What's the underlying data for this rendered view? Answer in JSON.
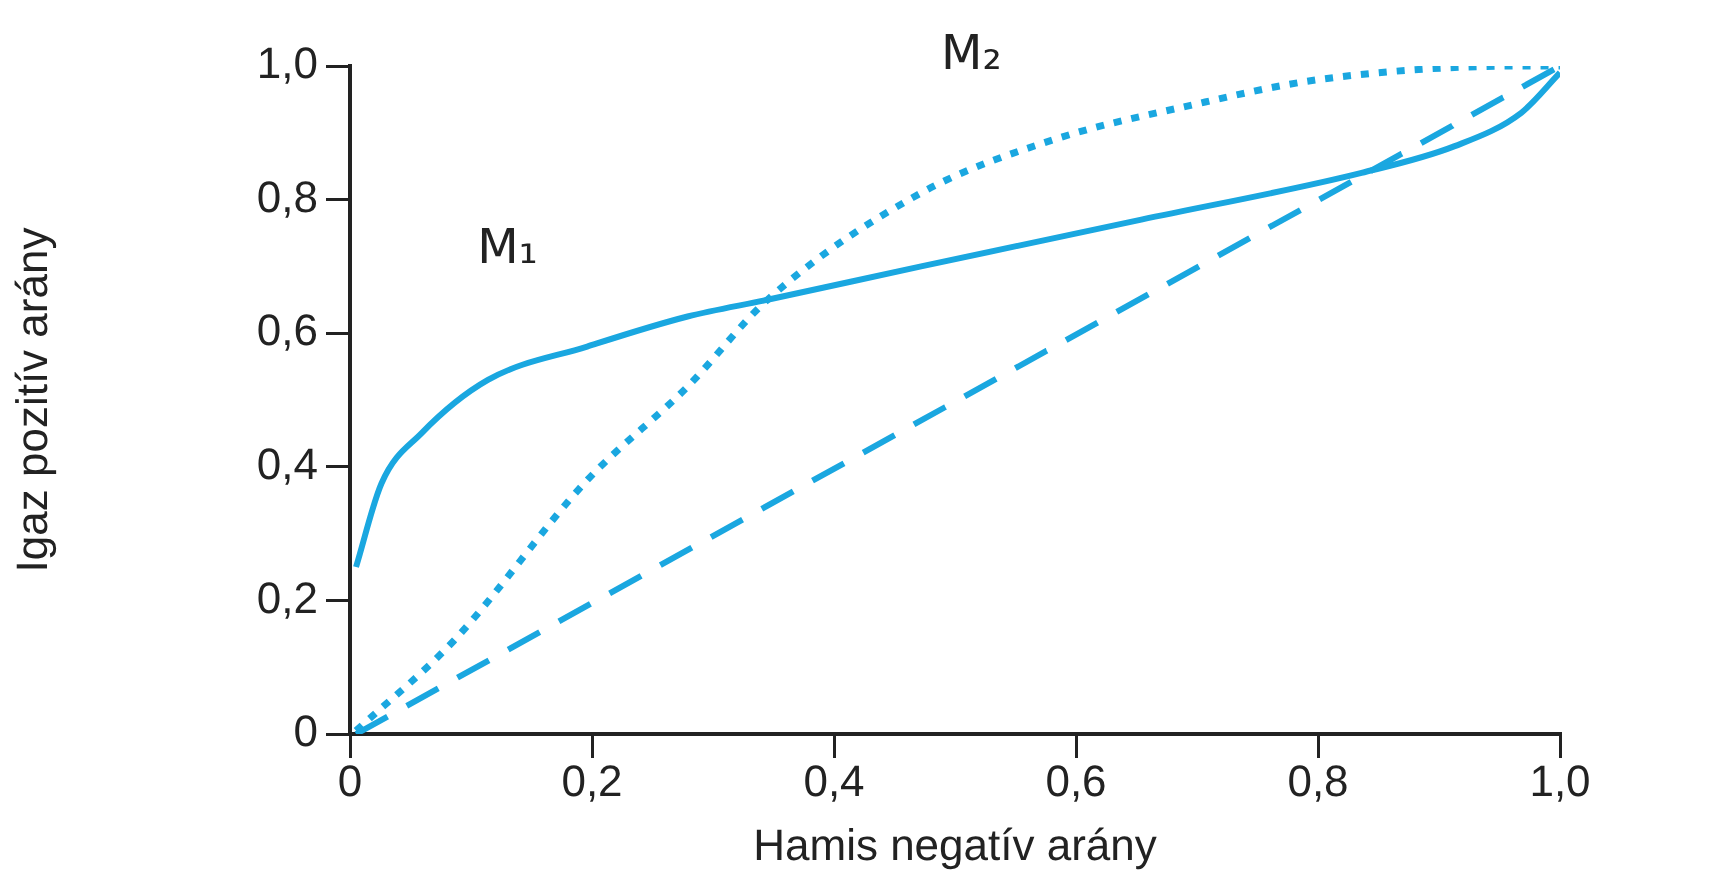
{
  "chart_data": {
    "type": "line",
    "xlabel": "Hamis negatív arány",
    "ylabel": "Igaz pozitív arány",
    "xlim": [
      0,
      1
    ],
    "ylim": [
      0,
      1
    ],
    "xticks": [
      0,
      {
        "value": 0.2,
        "label": "0,2"
      },
      {
        "value": 0.4,
        "label": "0,4"
      },
      {
        "value": 0.6,
        "label": "0,6"
      },
      {
        "value": 0.8,
        "label": "0,8"
      },
      {
        "value": 1,
        "label": "1,0"
      }
    ],
    "yticks": [
      0,
      {
        "value": 0.2,
        "label": "0,2"
      },
      {
        "value": 0.4,
        "label": "0,4"
      },
      {
        "value": 0.6,
        "label": "0,6"
      },
      {
        "value": 0.8,
        "label": "0,8"
      },
      {
        "value": 1,
        "label": "1,0"
      }
    ],
    "grid": false,
    "legend": false,
    "marker": "none",
    "series": [
      {
        "name": "M₁",
        "color": "#1aa7e0",
        "line_style": "solid",
        "x": [
          0.005,
          0.026,
          0.059,
          0.114,
          0.196,
          0.279,
          0.345,
          0.472,
          0.654,
          0.836,
          0.913,
          0.968,
          1.0
        ],
        "values": [
          0.25,
          0.375,
          0.45,
          0.53,
          0.58,
          0.625,
          0.65,
          0.7,
          0.77,
          0.84,
          0.88,
          0.93,
          0.99
        ]
      },
      {
        "name": "M₂",
        "color": "#1aa7e0",
        "line_style": "dotted",
        "x": [
          0.005,
          0.086,
          0.196,
          0.279,
          0.345,
          0.472,
          0.582,
          0.692,
          0.802,
          0.968,
          1.0
        ],
        "values": [
          0.005,
          0.14,
          0.38,
          0.52,
          0.65,
          0.81,
          0.89,
          0.94,
          0.98,
          1.0,
          1.0
        ]
      },
      {
        "color": "#1aa7e0",
        "line_style": "dashed",
        "x": [
          0.005,
          1.0
        ],
        "values": [
          0.0,
          1.0
        ]
      }
    ]
  }
}
